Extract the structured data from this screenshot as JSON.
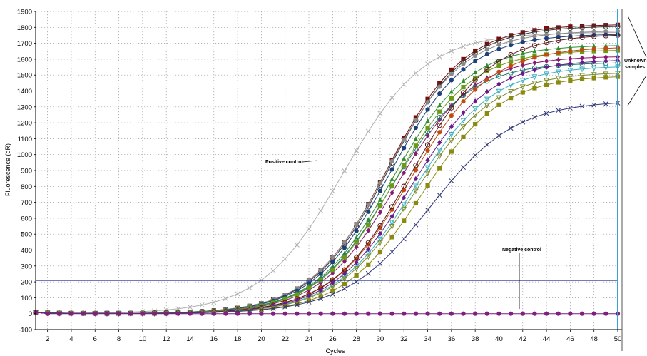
{
  "chart_data": {
    "type": "line",
    "xlabel": "Cycles",
    "ylabel": "Fluorescence (dR)",
    "xlim": [
      1,
      50
    ],
    "ylim": [
      -100,
      1900
    ],
    "x_ticks": [
      2,
      4,
      6,
      8,
      10,
      12,
      14,
      16,
      18,
      20,
      22,
      24,
      26,
      28,
      30,
      32,
      34,
      36,
      38,
      40,
      42,
      44,
      46,
      48,
      50
    ],
    "y_ticks": [
      -100,
      0,
      100,
      200,
      300,
      400,
      500,
      600,
      700,
      800,
      900,
      1000,
      1100,
      1200,
      1300,
      1400,
      1500,
      1600,
      1700,
      1800,
      1900
    ],
    "grid": "dotted",
    "threshold": {
      "value": 210,
      "color": "#1f2f8f"
    },
    "cursor": {
      "x": 50,
      "color": "#3aa0d8"
    },
    "annotations": {
      "positive_control": "Positive control",
      "negative_control": "Negative control",
      "unknown_line1": "Unknown",
      "unknown_line2": "samples"
    },
    "series": [
      {
        "color": "#b0b0b0",
        "marker": "x",
        "ct": 22.3,
        "max": 1770,
        "k": 0.29
      },
      {
        "color": "#7a0b0b",
        "marker": "square",
        "ct": 26.0,
        "max": 1820,
        "k": 0.31
      },
      {
        "color": "#3a3a3a",
        "marker": "circle-open",
        "ct": 26.1,
        "max": 1810,
        "k": 0.31
      },
      {
        "color": "#8a8a8a",
        "marker": "circle",
        "ct": 25.9,
        "max": 1780,
        "k": 0.31
      },
      {
        "color": "#1d3f7a",
        "marker": "circle",
        "ct": 26.2,
        "max": 1760,
        "k": 0.31
      },
      {
        "color": "#8a1a6f",
        "marker": "diamond",
        "ct": 26.8,
        "max": 1620,
        "k": 0.31
      },
      {
        "color": "#2f8f2f",
        "marker": "triangle",
        "ct": 26.4,
        "max": 1690,
        "k": 0.31
      },
      {
        "color": "#1a7a6a",
        "marker": "circle-open",
        "ct": 26.3,
        "max": 1580,
        "k": 0.31
      },
      {
        "color": "#6a9a1a",
        "marker": "square",
        "ct": 26.6,
        "max": 1660,
        "k": 0.31
      },
      {
        "color": "#c04a10",
        "marker": "circle",
        "ct": 27.9,
        "max": 1680,
        "k": 0.3
      },
      {
        "color": "#5a1a1a",
        "marker": "circle-open",
        "ct": 28.0,
        "max": 1760,
        "k": 0.3
      },
      {
        "color": "#3ab0c0",
        "marker": "triangle-down",
        "ct": 28.2,
        "max": 1560,
        "k": 0.3
      },
      {
        "color": "#7a8a2a",
        "marker": "triangle-down",
        "ct": 28.3,
        "max": 1520,
        "k": 0.3
      },
      {
        "color": "#6a1a8a",
        "marker": "diamond",
        "ct": 28.0,
        "max": 1600,
        "k": 0.3
      },
      {
        "color": "#8a8a10",
        "marker": "square",
        "ct": 28.9,
        "max": 1500,
        "k": 0.3
      },
      {
        "color": "#303878",
        "marker": "x",
        "ct": 29.6,
        "max": 1340,
        "k": 0.28
      },
      {
        "color": "#7f1f7f",
        "marker": "circle",
        "flat": 0
      }
    ]
  }
}
